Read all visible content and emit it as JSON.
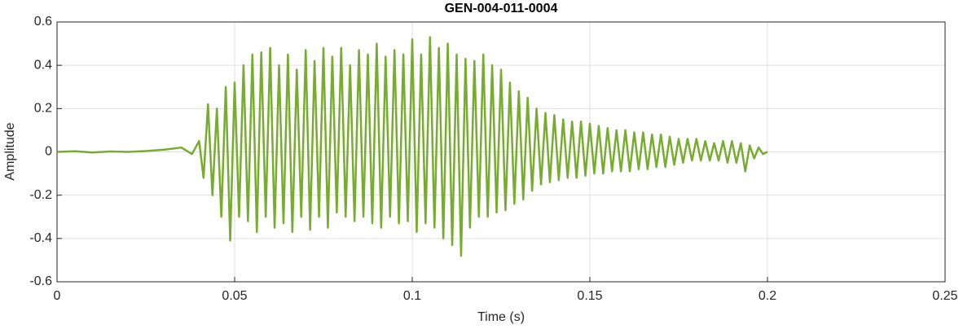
{
  "chart_data": {
    "type": "line",
    "title": "GEN-004-011-0004",
    "xlabel": "Time (s)",
    "ylabel": "Amplitude",
    "x": [
      0,
      0.005,
      0.01,
      0.015,
      0.02,
      0.025,
      0.03,
      0.035,
      0.038,
      0.04,
      0.04125,
      0.0425,
      0.04375,
      0.045,
      0.04625,
      0.0475,
      0.04875,
      0.05,
      0.05125,
      0.0525,
      0.05375,
      0.055,
      0.05625,
      0.0575,
      0.05875,
      0.06,
      0.06125,
      0.0625,
      0.06375,
      0.065,
      0.06625,
      0.0675,
      0.06875,
      0.07,
      0.07125,
      0.0725,
      0.07375,
      0.075,
      0.07625,
      0.0775,
      0.07875,
      0.08,
      0.08125,
      0.0825,
      0.08375,
      0.085,
      0.08625,
      0.0875,
      0.08875,
      0.09,
      0.09125,
      0.0925,
      0.09375,
      0.095,
      0.09625,
      0.0975,
      0.09875,
      0.1,
      0.10125,
      0.1025,
      0.10375,
      0.105,
      0.10625,
      0.1075,
      0.10875,
      0.11,
      0.11125,
      0.1125,
      0.11375,
      0.115,
      0.11625,
      0.1175,
      0.11875,
      0.12,
      0.12125,
      0.1225,
      0.12375,
      0.125,
      0.12625,
      0.1275,
      0.12875,
      0.13,
      0.13125,
      0.1325,
      0.13375,
      0.135,
      0.13625,
      0.1375,
      0.13875,
      0.14,
      0.14125,
      0.1425,
      0.14375,
      0.145,
      0.14625,
      0.1475,
      0.14875,
      0.15,
      0.15125,
      0.1525,
      0.15375,
      0.155,
      0.15625,
      0.1575,
      0.15875,
      0.16,
      0.16125,
      0.1625,
      0.16375,
      0.165,
      0.16625,
      0.1675,
      0.16875,
      0.17,
      0.17125,
      0.1725,
      0.17375,
      0.175,
      0.17625,
      0.1775,
      0.17875,
      0.18,
      0.18125,
      0.1825,
      0.18375,
      0.185,
      0.18625,
      0.1875,
      0.18875,
      0.19,
      0.19125,
      0.1925,
      0.19375,
      0.195,
      0.19625,
      0.1975,
      0.19875,
      0.2
    ],
    "series": [
      {
        "color": "#77ac30",
        "values": [
          0,
          0.003,
          -0.003,
          0.002,
          0,
          0.004,
          0.01,
          0.02,
          -0.01,
          0.05,
          -0.12,
          0.22,
          -0.2,
          0.2,
          -0.3,
          0.3,
          -0.41,
          0.32,
          -0.3,
          0.4,
          -0.32,
          0.45,
          -0.37,
          0.46,
          -0.3,
          0.48,
          -0.35,
          0.4,
          -0.33,
          0.45,
          -0.37,
          0.38,
          -0.3,
          0.47,
          -0.36,
          0.42,
          -0.3,
          0.48,
          -0.35,
          0.44,
          -0.28,
          0.48,
          -0.3,
          0.4,
          -0.32,
          0.47,
          -0.3,
          0.45,
          -0.33,
          0.5,
          -0.35,
          0.44,
          -0.3,
          0.47,
          -0.33,
          0.45,
          -0.32,
          0.52,
          -0.37,
          0.45,
          -0.33,
          0.53,
          -0.35,
          0.48,
          -0.4,
          0.5,
          -0.43,
          0.45,
          -0.48,
          0.43,
          -0.35,
          0.42,
          -0.3,
          0.45,
          -0.3,
          0.4,
          -0.28,
          0.38,
          -0.27,
          0.32,
          -0.24,
          0.28,
          -0.22,
          0.25,
          -0.18,
          0.2,
          -0.15,
          0.18,
          -0.14,
          0.17,
          -0.13,
          0.15,
          -0.12,
          0.14,
          -0.12,
          0.14,
          -0.11,
          0.13,
          -0.1,
          0.12,
          -0.1,
          0.11,
          -0.09,
          0.1,
          -0.09,
          0.1,
          -0.09,
          0.09,
          -0.08,
          0.09,
          -0.08,
          0.08,
          -0.07,
          0.08,
          -0.07,
          0.07,
          -0.06,
          0.06,
          -0.05,
          0.06,
          -0.04,
          0.06,
          -0.04,
          0.05,
          -0.04,
          0.04,
          -0.04,
          0.05,
          -0.05,
          0.05,
          -0.05,
          0.04,
          -0.09,
          0.03,
          -0.03,
          0.02,
          -0.01,
          0
        ]
      }
    ],
    "xlim": [
      0,
      0.25
    ],
    "xticks": [
      0,
      0.05,
      0.1,
      0.15,
      0.2,
      0.25
    ],
    "ylim": [
      -0.6,
      0.6
    ],
    "yticks": [
      -0.6,
      -0.4,
      -0.2,
      0,
      0.2,
      0.4,
      0.6
    ],
    "grid": true
  }
}
